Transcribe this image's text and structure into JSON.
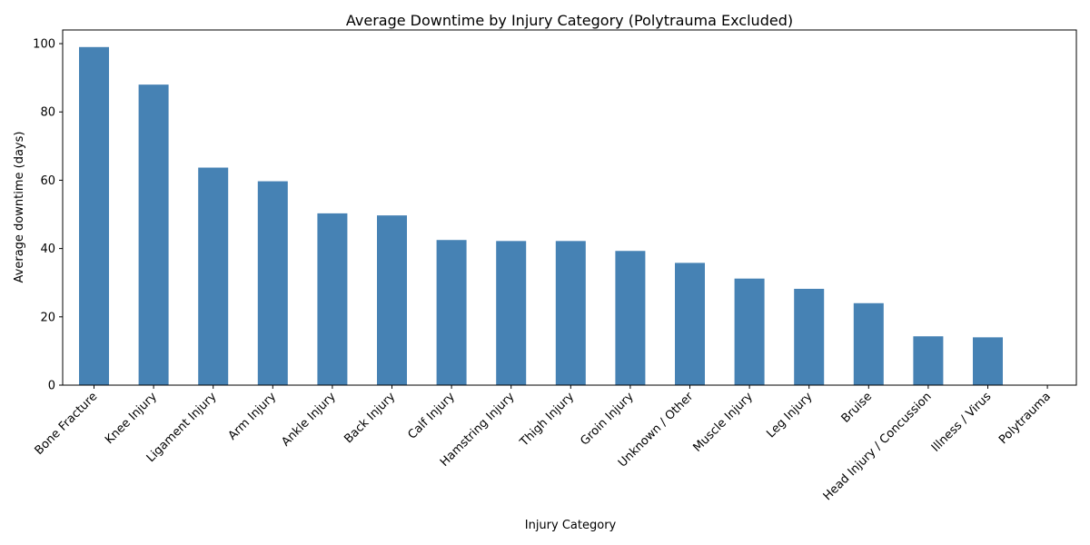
{
  "chart_data": {
    "type": "bar",
    "title": "Average Downtime by Injury Category (Polytrauma Excluded)",
    "xlabel": "Injury Category",
    "ylabel": "Average downtime (days)",
    "categories": [
      "Bone Fracture",
      "Knee Injury",
      "Ligament Injury",
      "Arm Injury",
      "Ankle Injury",
      "Back Injury",
      "Calf Injury",
      "Hamstring Injury",
      "Thigh Injury",
      "Groin Injury",
      "Unknown / Other",
      "Muscle Injury",
      "Leg Injury",
      "Bruise",
      "Head Injury / Concussion",
      "Illness / Virus",
      "Polytrauma"
    ],
    "values": [
      99.0,
      88.0,
      63.7,
      59.7,
      50.3,
      49.7,
      42.5,
      42.2,
      42.2,
      39.3,
      35.8,
      31.2,
      28.2,
      24.0,
      14.3,
      14.0,
      0
    ],
    "ylim": [
      0,
      104
    ],
    "yticks": [
      0,
      20,
      40,
      60,
      80,
      100
    ],
    "bar_color": "#4682b4",
    "grid": false
  }
}
